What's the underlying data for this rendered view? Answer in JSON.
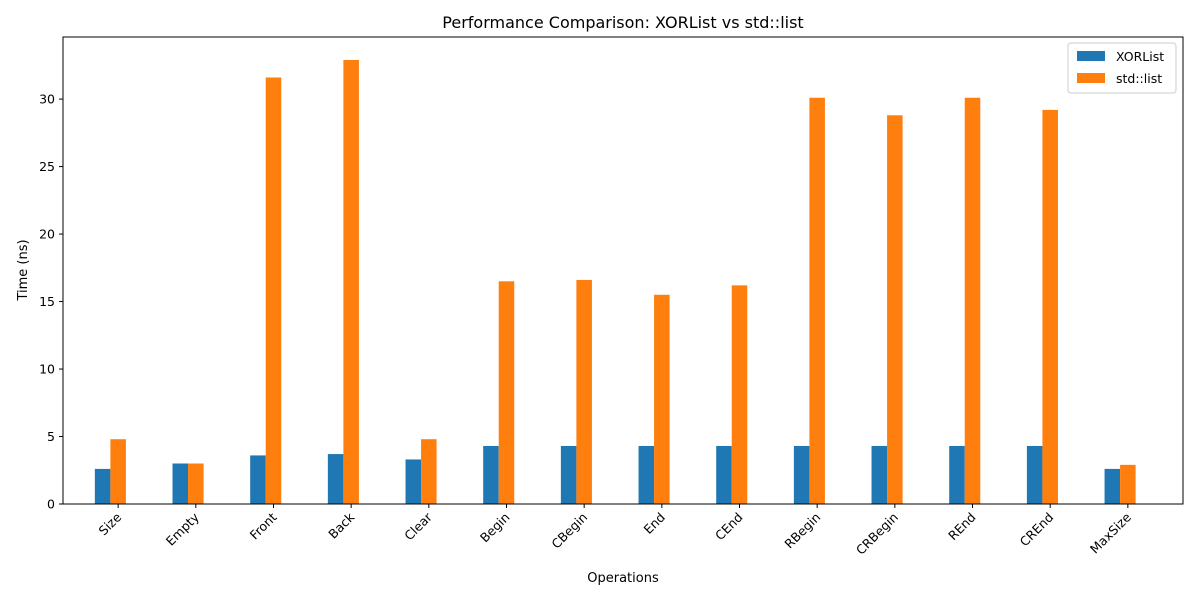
{
  "chart_data": {
    "type": "bar",
    "title": "Performance Comparison: XORList vs std::list",
    "xlabel": "Operations",
    "ylabel": "Time (ns)",
    "categories": [
      "Size",
      "Empty",
      "Front",
      "Back",
      "Clear",
      "Begin",
      "CBegin",
      "End",
      "CEnd",
      "RBegin",
      "CRBegin",
      "REnd",
      "CREnd",
      "MaxSize"
    ],
    "series": [
      {
        "name": "XORList",
        "color": "#1f77b4",
        "values": [
          2.6,
          3.0,
          3.6,
          3.7,
          3.3,
          4.3,
          4.3,
          4.3,
          4.3,
          4.3,
          4.3,
          4.3,
          4.3,
          2.6
        ]
      },
      {
        "name": "std::list",
        "color": "#ff7f0e",
        "values": [
          4.8,
          3.0,
          31.6,
          32.9,
          4.8,
          16.5,
          16.6,
          15.5,
          16.2,
          30.1,
          28.8,
          30.1,
          29.2,
          2.9
        ]
      }
    ],
    "ylim": [
      0,
      34.6
    ],
    "yticks": [
      0,
      5,
      10,
      15,
      20,
      25,
      30
    ],
    "grid": false,
    "legend_position": "top-right"
  }
}
